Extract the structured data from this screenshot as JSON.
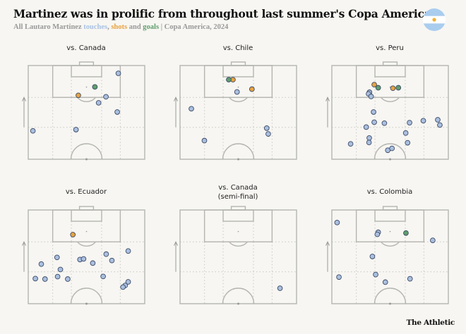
{
  "header": {
    "title": "Martinez was in prolific from throughout last summer's Copa America",
    "subtitle_prefix": "All Lautaro Martinez ",
    "subtitle_touches": "touches",
    "subtitle_comma": ", ",
    "subtitle_shots": "shots",
    "subtitle_and": " and ",
    "subtitle_goals": "goals",
    "subtitle_suffix": " | Copa America, 2024",
    "flag_icon": "argentina-flag-icon"
  },
  "footer": {
    "brand": "The Athletic"
  },
  "colors": {
    "touch": "#aabfdf",
    "shot": "#e8a23f",
    "goal": "#5e9e6c",
    "outline": "#3d4a66",
    "pitch_line": "#b5b5b0",
    "background": "#f7f6f2"
  },
  "chart_data": {
    "type": "scatter",
    "coordinate_system": "attacking half of pitch; x = 0-100 left to right, y = 0 at halfway line to 100 at opponent goal line; attack direction upward",
    "panels": [
      {
        "title": "vs. Canada",
        "touches": [
          [
            77.3,
            91.7
          ],
          [
            66.7,
            66.7
          ],
          [
            60.4,
            60.2
          ],
          [
            76.4,
            50.4
          ],
          [
            4.0,
            30.3
          ],
          [
            41.0,
            31.6
          ]
        ],
        "shots": [
          [
            43.0,
            68.2
          ]
        ],
        "goals": [
          [
            57.2,
            77.2
          ]
        ]
      },
      {
        "title": "vs. Chile",
        "touches": [
          [
            48.9,
            71.8
          ],
          [
            9.7,
            53.9
          ],
          [
            20.9,
            19.9
          ],
          [
            74.4,
            33.2
          ],
          [
            75.7,
            27.0
          ]
        ],
        "shots": [
          [
            45.4,
            84.9
          ],
          [
            61.7,
            74.8
          ]
        ],
        "goals": [
          [
            41.8,
            84.9
          ]
        ]
      },
      {
        "title": "vs. Peru",
        "touches": [
          [
            32.3,
            71.5
          ],
          [
            31.5,
            69.8
          ],
          [
            33.7,
            67.0
          ],
          [
            35.8,
            50.4
          ],
          [
            36.4,
            39.5
          ],
          [
            45.1,
            38.5
          ],
          [
            29.5,
            34.3
          ],
          [
            32.1,
            22.7
          ],
          [
            31.9,
            17.9
          ],
          [
            16.1,
            16.4
          ],
          [
            48.0,
            9.6
          ],
          [
            51.6,
            11.6
          ],
          [
            63.4,
            28.0
          ],
          [
            65.0,
            17.6
          ],
          [
            66.7,
            39.0
          ],
          [
            78.5,
            41.1
          ],
          [
            90.9,
            42.1
          ],
          [
            92.7,
            36.5
          ]
        ],
        "shots": [
          [
            36.4,
            79.6
          ],
          [
            52.4,
            75.8
          ]
        ],
        "goals": [
          [
            39.8,
            76.3
          ],
          [
            57.1,
            76.3
          ]
        ]
      },
      {
        "title": "vs. Ecuador",
        "touches": [
          [
            85.8,
            56.2
          ],
          [
            66.9,
            52.9
          ],
          [
            71.8,
            46.1
          ],
          [
            24.7,
            49.4
          ],
          [
            11.2,
            42.3
          ],
          [
            44.4,
            47.1
          ],
          [
            47.5,
            47.8
          ],
          [
            55.4,
            43.3
          ],
          [
            27.6,
            36.5
          ],
          [
            25.2,
            28.9
          ],
          [
            6.1,
            26.8
          ],
          [
            14.4,
            26.3
          ],
          [
            33.9,
            26.3
          ],
          [
            64.3,
            29.1
          ],
          [
            85.8,
            23.3
          ],
          [
            83.2,
            19.5
          ],
          [
            81.3,
            17.7
          ]
        ],
        "shots": [
          [
            38.3,
            73.7
          ]
        ],
        "goals": []
      },
      {
        "title": "vs. Canada",
        "title_line2": "(semi-final)",
        "touches": [
          [
            85.8,
            16.5
          ]
        ],
        "shots": [],
        "goals": []
      },
      {
        "title": "vs. Colombia",
        "touches": [
          [
            4.5,
            86.6
          ],
          [
            39.8,
            76.2
          ],
          [
            39.0,
            74.0
          ],
          [
            86.6,
            67.6
          ],
          [
            34.8,
            50.4
          ],
          [
            6.1,
            28.4
          ],
          [
            37.6,
            31.1
          ],
          [
            45.9,
            23.0
          ],
          [
            67.1,
            26.6
          ]
        ],
        "shots": [],
        "goals": [
          [
            63.6,
            75.4
          ]
        ]
      }
    ]
  }
}
